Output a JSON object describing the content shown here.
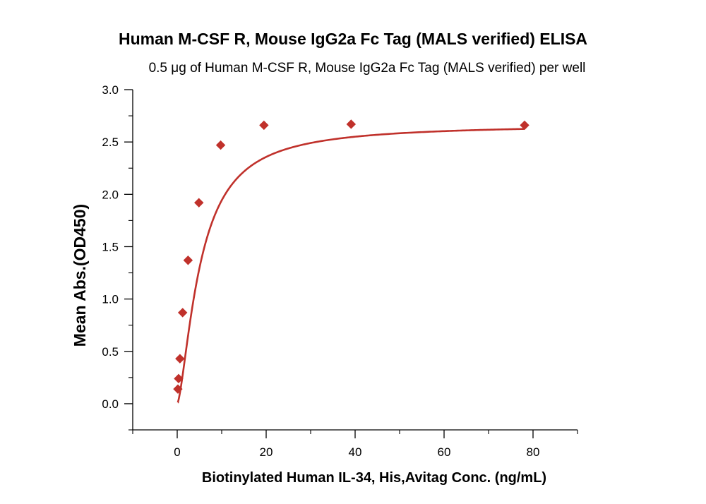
{
  "chart_data": {
    "type": "scatter",
    "title": "Human M-CSF R,  Mouse IgG2a Fc Tag (MALS verified) ELISA",
    "subtitle": "0.5 μg of Human M-CSF R,  Mouse IgG2a Fc Tag (MALS verified) per well",
    "xlabel": "Biotinylated Human IL-34, His,Avitag Conc. (ng/mL)",
    "ylabel": "Mean Abs.(OD450)",
    "xlim": [
      -10,
      90
    ],
    "ylim": [
      -0.25,
      3.0
    ],
    "xticks": [
      0,
      20,
      40,
      60,
      80
    ],
    "yticks": [
      0.0,
      0.5,
      1.0,
      1.5,
      2.0,
      2.5,
      3.0
    ],
    "xtick_labels": [
      "0",
      "20",
      "40",
      "60",
      "80"
    ],
    "ytick_labels": [
      "0.0",
      "0.5",
      "1.0",
      "1.5",
      "2.0",
      "2.5",
      "3.0"
    ],
    "grid": false,
    "legend": "none",
    "marker": "diamond",
    "color": "#C0312B",
    "series": [
      {
        "x": [
          0.15,
          0.31,
          0.61,
          1.22,
          2.44,
          4.88,
          9.77,
          19.5,
          39.1,
          78.1
        ],
        "y": [
          0.14,
          0.24,
          0.43,
          0.87,
          1.37,
          1.92,
          2.47,
          2.66,
          2.67,
          2.66
        ]
      }
    ],
    "fit_curve": {
      "type": "4PL",
      "bottom": 0.0,
      "top": 2.67,
      "ec50": 5.2,
      "hill": 1.5
    }
  }
}
